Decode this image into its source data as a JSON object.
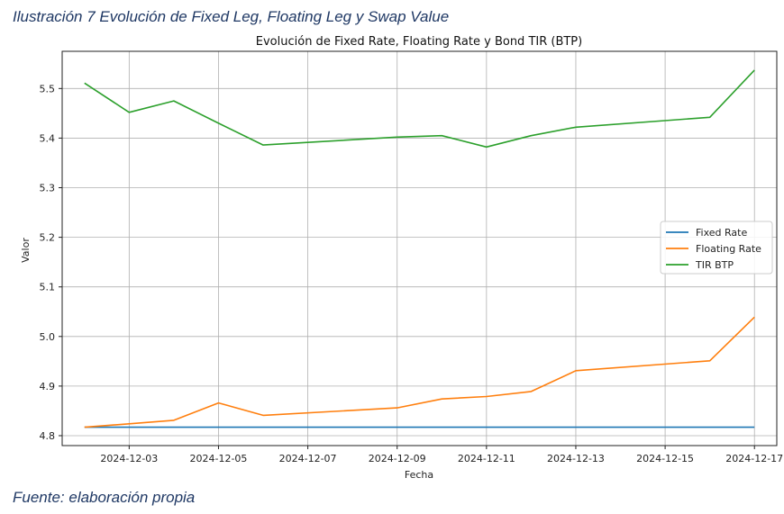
{
  "caption": "Ilustración 7 Evolución de Fixed Leg, Floating Leg y Swap Value",
  "source": "Fuente: elaboración propia",
  "chart_data": {
    "type": "line",
    "title": "Evolución de Fixed Rate, Floating Rate y Bond TIR (BTP)",
    "xlabel": "Fecha",
    "ylabel": "Valor",
    "xlim": [
      "2024-12-01T12:00",
      "2024-12-17T12:00"
    ],
    "ylim": [
      4.78,
      5.575
    ],
    "x_ticks": [
      "2024-12-03",
      "2024-12-05",
      "2024-12-07",
      "2024-12-09",
      "2024-12-11",
      "2024-12-13",
      "2024-12-15",
      "2024-12-17"
    ],
    "y_ticks": [
      4.8,
      4.9,
      5.0,
      5.1,
      5.2,
      5.3,
      5.4,
      5.5
    ],
    "grid": true,
    "legend_position": "center-right",
    "x": [
      "2024-12-02",
      "2024-12-03",
      "2024-12-04",
      "2024-12-05",
      "2024-12-06",
      "2024-12-09",
      "2024-12-10",
      "2024-12-11",
      "2024-12-12",
      "2024-12-13",
      "2024-12-16",
      "2024-12-17"
    ],
    "series": [
      {
        "name": "Fixed Rate",
        "color": "#1f77b4",
        "values": [
          4.817,
          4.817,
          4.817,
          4.817,
          4.817,
          4.817,
          4.817,
          4.817,
          4.817,
          4.817,
          4.817,
          4.817
        ]
      },
      {
        "name": "Floating Rate",
        "color": "#ff7f0e",
        "values": [
          4.817,
          4.824,
          4.831,
          4.866,
          4.841,
          4.856,
          4.874,
          4.879,
          4.889,
          4.931,
          4.951,
          5.039
        ]
      },
      {
        "name": "TIR BTP",
        "color": "#2ca02c",
        "values": [
          5.511,
          5.452,
          5.475,
          5.43,
          5.386,
          5.402,
          5.405,
          5.382,
          5.405,
          5.422,
          5.442,
          5.537
        ]
      }
    ]
  }
}
